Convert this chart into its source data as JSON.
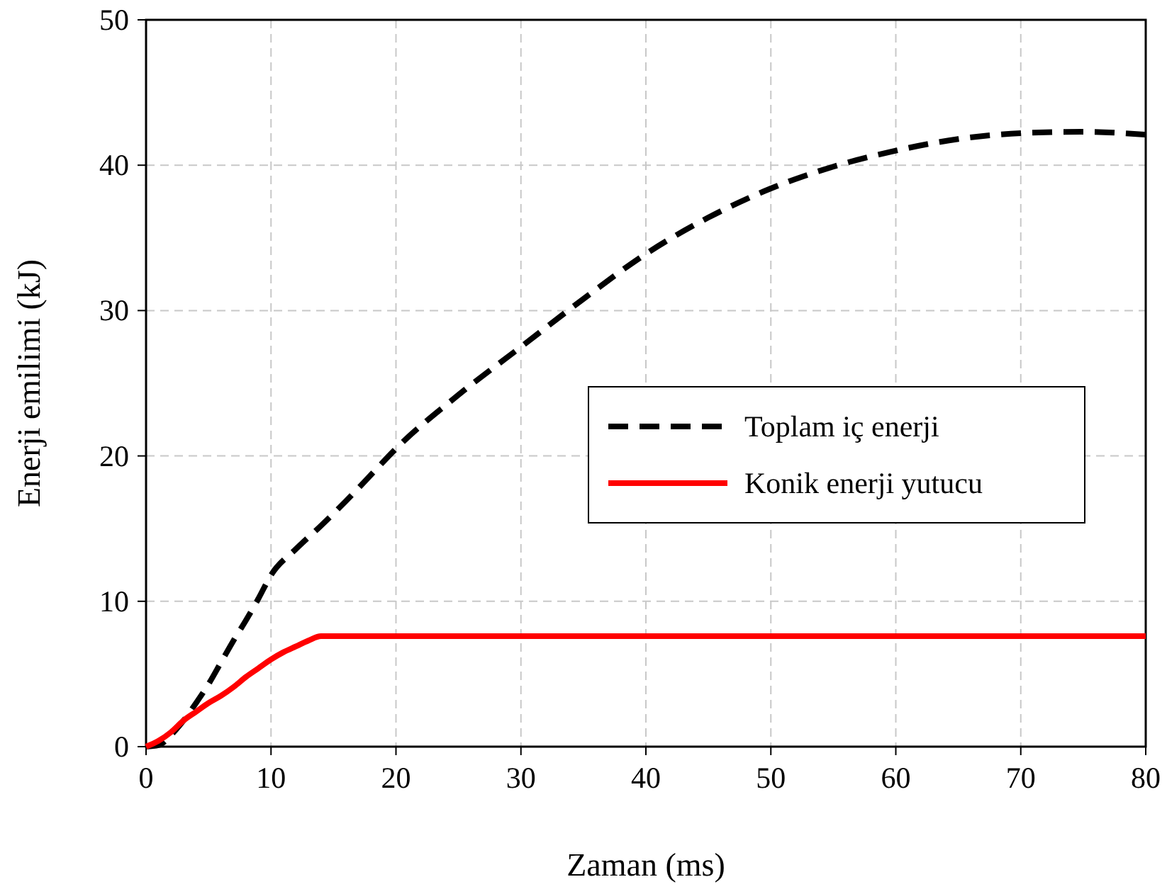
{
  "chart_data": {
    "type": "line",
    "xlabel": "Zaman (ms)",
    "ylabel": "Enerji emilimi (kJ)",
    "xlim": [
      0,
      80
    ],
    "xticks": [
      0,
      10,
      20,
      30,
      40,
      50,
      60,
      70,
      80
    ],
    "ylim": [
      0,
      50
    ],
    "yticks": [
      0,
      10,
      20,
      30,
      40,
      50
    ],
    "grid": true,
    "legend": "right",
    "series": [
      {
        "name": "Toplam iç enerji",
        "color": "#000000",
        "line_style": "dashed",
        "x": [
          0,
          1,
          2,
          3,
          4,
          5,
          6,
          7,
          8,
          9,
          10,
          12,
          14,
          16,
          18,
          20,
          25,
          30,
          35,
          40,
          45,
          50,
          55,
          60,
          65,
          70,
          75,
          80
        ],
        "values": [
          0,
          0.1,
          0.8,
          1.8,
          3,
          4.3,
          5.8,
          7.3,
          8.7,
          10.2,
          11.8,
          13.6,
          15.2,
          16.9,
          18.7,
          20.5,
          24.2,
          27.5,
          30.8,
          33.9,
          36.4,
          38.4,
          39.9,
          41,
          41.8,
          42.2,
          42.3,
          42.1
        ]
      },
      {
        "name": "Konik enerji yutucu",
        "color": "#ff0000",
        "line_style": "solid",
        "x": [
          0,
          1,
          2,
          3,
          4,
          5,
          6,
          7,
          8,
          9,
          10,
          11,
          12,
          13,
          14,
          20,
          40,
          60,
          80
        ],
        "values": [
          0,
          0.4,
          1,
          1.8,
          2.4,
          3,
          3.5,
          4.1,
          4.8,
          5.4,
          6,
          6.5,
          6.9,
          7.3,
          7.6,
          7.6,
          7.6,
          7.6,
          7.6
        ]
      }
    ]
  }
}
